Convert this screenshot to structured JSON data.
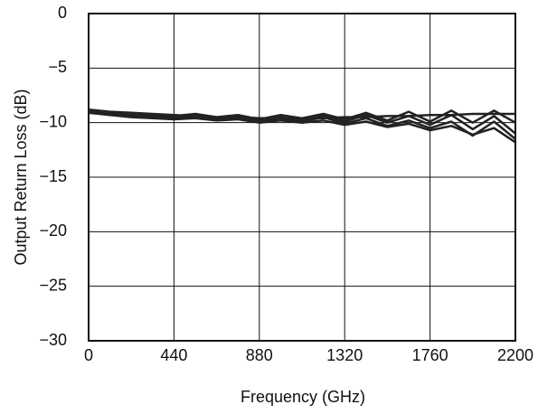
{
  "chart_data": {
    "type": "line",
    "xlabel": "Frequency (GHz)",
    "ylabel": "Output Return Loss (dB)",
    "x": [
      0,
      110,
      220,
      330,
      440,
      550,
      660,
      770,
      880,
      990,
      1100,
      1210,
      1320,
      1430,
      1540,
      1650,
      1760,
      1870,
      1980,
      2090,
      2200
    ],
    "series": [
      {
        "color": "#222222",
        "values": [
          -8.8,
          -9.0,
          -9.1,
          -9.2,
          -9.3,
          -9.4,
          -9.5,
          -9.5,
          -9.6,
          -9.6,
          -9.6,
          -9.6,
          -9.5,
          -9.5,
          -9.4,
          -9.4,
          -9.3,
          -9.3,
          -9.2,
          -9.2,
          -9.2
        ]
      },
      {
        "color": "#222222",
        "values": [
          -9.0,
          -9.1,
          -9.3,
          -9.3,
          -9.4,
          -9.2,
          -9.5,
          -9.3,
          -9.7,
          -9.3,
          -9.6,
          -9.2,
          -9.7,
          -9.1,
          -9.8,
          -9.0,
          -9.9,
          -8.9,
          -10.0,
          -8.9,
          -10.0
        ]
      },
      {
        "color": "#222222",
        "values": [
          -9.1,
          -9.2,
          -9.3,
          -9.4,
          -9.5,
          -9.4,
          -9.6,
          -9.4,
          -9.8,
          -9.5,
          -9.8,
          -9.4,
          -9.9,
          -9.3,
          -10.0,
          -9.4,
          -10.2,
          -9.3,
          -10.6,
          -9.4,
          -11.0
        ]
      },
      {
        "color": "#222222",
        "values": [
          -9.0,
          -9.2,
          -9.4,
          -9.5,
          -9.6,
          -9.5,
          -9.7,
          -9.6,
          -9.9,
          -9.6,
          -9.9,
          -9.5,
          -10.1,
          -9.6,
          -10.3,
          -9.8,
          -10.5,
          -9.9,
          -11.2,
          -9.9,
          -11.5
        ]
      },
      {
        "color": "#222222",
        "values": [
          -9.1,
          -9.3,
          -9.5,
          -9.6,
          -9.7,
          -9.6,
          -9.8,
          -9.7,
          -10.0,
          -9.8,
          -10.0,
          -9.8,
          -10.2,
          -9.9,
          -10.4,
          -10.1,
          -10.7,
          -10.3,
          -11.1,
          -10.5,
          -11.8
        ]
      }
    ],
    "xlim": [
      0,
      2200
    ],
    "xticks": [
      0,
      440,
      880,
      1320,
      1760,
      2200
    ],
    "ylim": [
      -30,
      0
    ],
    "yticks": [
      {
        "value": -30,
        "label": "−30"
      },
      {
        "value": -25,
        "label": "−25"
      },
      {
        "value": -20,
        "label": "−20"
      },
      {
        "value": -15,
        "label": "−15"
      },
      {
        "value": -10,
        "label": "−10"
      },
      {
        "value": -5,
        "label": "−5"
      },
      0
    ],
    "grid": true
  }
}
